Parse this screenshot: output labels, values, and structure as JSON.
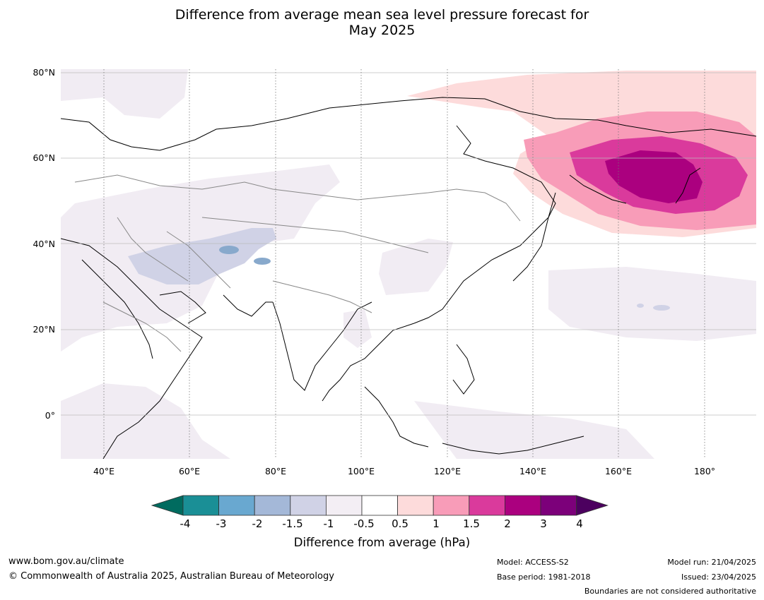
{
  "title_line1": "Difference from average mean sea level pressure forecast for",
  "title_line2": "May 2025",
  "lat_labels": [
    "80°N",
    "60°N",
    "40°N",
    "20°N",
    "0°"
  ],
  "lon_labels": [
    "40°E",
    "60°E",
    "80°E",
    "100°E",
    "120°E",
    "140°E",
    "160°E",
    "180°"
  ],
  "colorbar": {
    "ticks": [
      "-4",
      "-3",
      "-2",
      "-1.5",
      "-1",
      "-0.5",
      "0.5",
      "1",
      "1.5",
      "2",
      "3",
      "4"
    ],
    "colors": [
      "#006b5f",
      "#1a8f96",
      "#69a8d0",
      "#a4b8d8",
      "#d0d2e6",
      "#f3eef4",
      "#ffffff",
      "#fddbdb",
      "#f89cb8",
      "#da3a9c",
      "#ab007f",
      "#7c007a",
      "#4c005f"
    ],
    "label": "Difference from average (hPa)"
  },
  "footer": {
    "url": "www.bom.gov.au/climate",
    "copyright": "© Commonwealth of Australia 2025, Australian Bureau of Meteorology",
    "model": "Model: ACCESS-S2",
    "base_period": "Base period: 1981-2018",
    "model_run": "Model run: 21/04/2025",
    "issued": "Issued: 23/04/2025",
    "disclaimer": "Boundaries are not considered authoritative"
  }
}
